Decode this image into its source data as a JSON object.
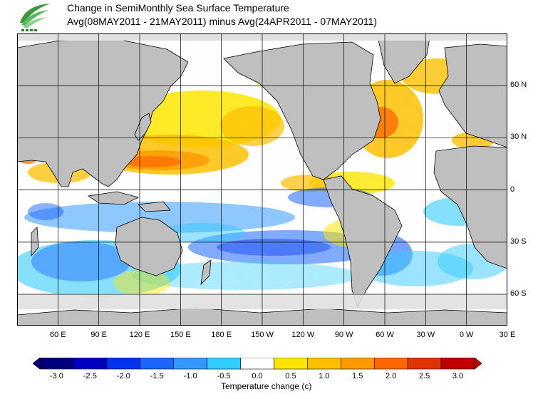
{
  "title_line1": "Change in SemiMonthly Sea Surface Temperature",
  "title_line2": "Avg(08MAY2011 - 21MAY2011) minus Avg(24APR2011 - 07MAY2011)",
  "logo_icon": "leaf-logo-icon",
  "map": {
    "projection": "cylindrical, Pacific-centered",
    "lon_range": [
      30,
      390
    ],
    "lat_range": [
      -78,
      90
    ],
    "lat_labels": [
      "60 N",
      "30 N",
      "0",
      "30 S",
      "60 S"
    ],
    "lat_values": [
      60,
      30,
      0,
      -30,
      -60
    ],
    "lon_labels": [
      "60 E",
      "90 E",
      "120 E",
      "150 E",
      "180 E",
      "150 W",
      "120 W",
      "90 W",
      "60 W",
      "30 W",
      "0 W",
      "30 E"
    ],
    "lon_values": [
      60,
      90,
      120,
      150,
      180,
      210,
      240,
      270,
      300,
      330,
      360,
      390
    ],
    "land_color": "#bfbfbf",
    "ice_color": "#e0e0e0",
    "ocean_base_color": "#ffffff"
  },
  "colorbar": {
    "label": "Temperature change  (c)",
    "tick_labels": [
      "-3.0",
      "-2.5",
      "-2.0",
      "-1.5",
      "-1.0",
      "-0.5",
      "0.0",
      "0.5",
      "1.0",
      "1.5",
      "2.0",
      "2.5",
      "3.0"
    ],
    "colors": [
      "#00007a",
      "#0000c0",
      "#0033ee",
      "#1a66ff",
      "#3399ff",
      "#33ccff",
      "#ffffff",
      "#ffe600",
      "#ffbf00",
      "#ff9900",
      "#ff6600",
      "#e03300",
      "#c00000"
    ]
  }
}
